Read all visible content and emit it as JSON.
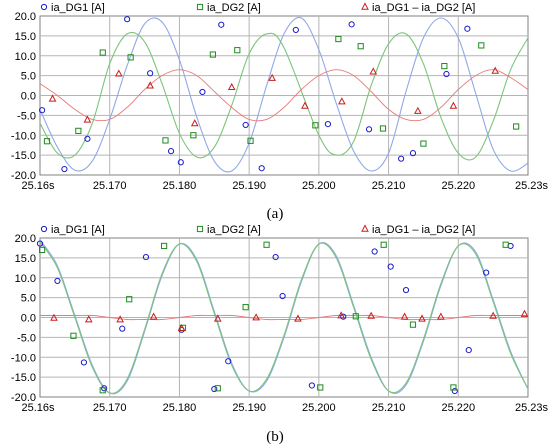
{
  "chart_data": [
    {
      "type": "line",
      "caption": "(a)",
      "xlim": [
        25.16,
        25.23
      ],
      "ylim": [
        -20,
        20
      ],
      "x_ticks": [
        "25.16s",
        "25.170",
        "25.180",
        "25.190",
        "25.200",
        "25.210",
        "25.220",
        "25.23s"
      ],
      "y_ticks": [
        "20.0",
        "15.0",
        "10.0",
        "5.0",
        "0.0",
        "-5.0",
        "-10.0",
        "-15.0",
        "-20.0"
      ],
      "grid": true,
      "legend_position": "top",
      "series": [
        {
          "name": "ia_DG1 [A]",
          "color": "#1a1acc",
          "line_color": "#8fa8e8",
          "marker": "circle",
          "x": [
            25.16,
            25.1625,
            25.165,
            25.1675,
            25.17,
            25.1725,
            25.175,
            25.1775,
            25.18,
            25.1825,
            25.185,
            25.1875,
            25.19,
            25.1925,
            25.195,
            25.1975,
            25.2,
            25.2025,
            25.205,
            25.2075,
            25.21,
            25.2125,
            25.215,
            25.2175,
            25.22,
            25.2225,
            25.225,
            25.2275,
            25.23
          ],
          "y": [
            -3.5,
            -13.0,
            -18.8,
            -16.5,
            -6.0,
            7.5,
            18.0,
            18.5,
            9.0,
            -5.5,
            -16.5,
            -19.0,
            -12.0,
            2.5,
            15.5,
            19.5,
            11.5,
            -2.0,
            -14.0,
            -19.0,
            -14.5,
            1.0,
            14.5,
            19.5,
            14.5,
            0.5,
            -13.5,
            -19.0,
            -17.0
          ],
          "marked_points": [
            [
              25.1603,
              -3.7
            ],
            [
              25.1635,
              -18.5
            ],
            [
              25.1668,
              -10.9
            ],
            [
              25.1725,
              19.2
            ],
            [
              25.1758,
              5.6
            ],
            [
              25.1788,
              -14.0
            ],
            [
              25.1802,
              -16.8
            ],
            [
              25.1833,
              0.9
            ],
            [
              25.186,
              17.8
            ],
            [
              25.1895,
              -7.4
            ],
            [
              25.1918,
              -18.3
            ],
            [
              25.1967,
              16.5
            ],
            [
              25.2013,
              -7.2
            ],
            [
              25.2047,
              17.9
            ],
            [
              25.2072,
              -8.5
            ],
            [
              25.2118,
              -15.9
            ],
            [
              25.2135,
              -14.5
            ],
            [
              25.2183,
              5.4
            ],
            [
              25.2213,
              16.8
            ]
          ]
        },
        {
          "name": "ia_DG2 [A]",
          "color": "#1e8c1e",
          "line_color": "#7cc47c",
          "marker": "square",
          "x": [
            25.16,
            25.1625,
            25.165,
            25.1675,
            25.17,
            25.1725,
            25.175,
            25.1775,
            25.18,
            25.1825,
            25.185,
            25.1875,
            25.19,
            25.1925,
            25.195,
            25.2,
            25.2025,
            25.205,
            25.2075,
            25.21,
            25.2125,
            25.215,
            25.2175,
            25.22,
            25.2225,
            25.225,
            25.2275,
            25.23
          ],
          "y": [
            -7.0,
            -14.5,
            -15.0,
            -7.0,
            8.0,
            15.5,
            13.5,
            3.0,
            -9.5,
            -15.5,
            -13.0,
            -2.5,
            10.5,
            15.5,
            12.0,
            -10.0,
            -15.0,
            -11.5,
            2.5,
            13.0,
            15.5,
            8.0,
            -5.5,
            -14.5,
            -15.5,
            -6.5,
            6.5,
            14.5
          ],
          "marked_points": [
            [
              25.161,
              -11.5
            ],
            [
              25.1655,
              -8.9
            ],
            [
              25.169,
              10.8
            ],
            [
              25.173,
              9.6
            ],
            [
              25.178,
              -11.3
            ],
            [
              25.182,
              -10.0
            ],
            [
              25.1848,
              10.3
            ],
            [
              25.1883,
              11.4
            ],
            [
              25.1902,
              -11.4
            ],
            [
              25.1995,
              -7.5
            ],
            [
              25.2028,
              14.2
            ],
            [
              25.206,
              12.4
            ],
            [
              25.2092,
              -8.3
            ],
            [
              25.215,
              -12.1
            ],
            [
              25.218,
              7.4
            ],
            [
              25.2233,
              12.6
            ],
            [
              25.2283,
              -7.8
            ]
          ]
        },
        {
          "name": "ia_DG1 – ia_DG2 [A]",
          "color": "#c81e1e",
          "line_color": "#e87a7a",
          "marker": "triangle",
          "x": [
            25.16,
            25.1625,
            25.165,
            25.1675,
            25.17,
            25.1725,
            25.175,
            25.1775,
            25.18,
            25.1825,
            25.185,
            25.1875,
            25.19,
            25.1925,
            25.195,
            25.1975,
            25.2,
            25.2025,
            25.205,
            25.2075,
            25.21,
            25.2125,
            25.215,
            25.2175,
            25.22,
            25.2225,
            25.225,
            25.2275,
            25.23
          ],
          "y": [
            3.0,
            0.0,
            -3.5,
            -6.0,
            -6.0,
            -3.0,
            1.5,
            5.0,
            6.5,
            5.0,
            1.0,
            -3.0,
            -6.0,
            -6.0,
            -3.0,
            1.5,
            5.0,
            6.5,
            5.0,
            1.0,
            -3.5,
            -6.0,
            -6.0,
            -3.0,
            1.5,
            5.0,
            6.5,
            4.5,
            1.5
          ],
          "marked_points": [
            [
              25.1618,
              -0.8
            ],
            [
              25.1668,
              -6.1
            ],
            [
              25.1713,
              5.5
            ],
            [
              25.1758,
              2.5
            ],
            [
              25.1822,
              -7.0
            ],
            [
              25.1875,
              2.1
            ],
            [
              25.1933,
              4.4
            ],
            [
              25.198,
              -2.6
            ],
            [
              25.2033,
              -1.5
            ],
            [
              25.2078,
              6.0
            ],
            [
              25.2142,
              -3.9
            ],
            [
              25.2193,
              -2.6
            ],
            [
              25.2253,
              6.2
            ]
          ]
        }
      ]
    },
    {
      "type": "line",
      "caption": "(b)",
      "xlim": [
        25.16,
        25.23
      ],
      "ylim": [
        -20,
        20
      ],
      "x_ticks": [
        "25.16s",
        "25.170",
        "25.180",
        "25.190",
        "25.200",
        "25.210",
        "25.220",
        "25.23s"
      ],
      "y_ticks": [
        "20.0",
        "15.0",
        "10.0",
        "5.0",
        "0.0",
        "-5.0",
        "-10.0",
        "-15.0",
        "-20.0"
      ],
      "grid": true,
      "legend_position": "top",
      "series": [
        {
          "name": "ia_DG1 [A]",
          "color": "#1a1acc",
          "line_color": "#8fa8e8",
          "marker": "circle",
          "x": [
            25.16,
            25.1625,
            25.165,
            25.1675,
            25.17,
            25.1725,
            25.175,
            25.1775,
            25.18,
            25.1825,
            25.185,
            25.1875,
            25.19,
            25.1925,
            25.195,
            25.1975,
            25.2,
            25.2025,
            25.205,
            25.2075,
            25.21,
            25.2125,
            25.215,
            25.2175,
            25.22,
            25.2225,
            25.225,
            25.2275,
            25.23
          ],
          "y": [
            19.5,
            13.0,
            0.5,
            -12.0,
            -19.0,
            -16.0,
            -3.5,
            10.5,
            18.5,
            14.5,
            1.5,
            -11.5,
            -18.5,
            -16.0,
            -5.0,
            9.0,
            18.5,
            15.5,
            3.0,
            -10.0,
            -18.5,
            -17.0,
            -6.0,
            8.0,
            18.0,
            16.5,
            4.5,
            -8.5,
            -18.0
          ],
          "marked_points": [
            [
              25.16,
              18.6
            ],
            [
              25.1625,
              9.2
            ],
            [
              25.1663,
              -11.3
            ],
            [
              25.1692,
              -17.8
            ],
            [
              25.1718,
              -2.8
            ],
            [
              25.1752,
              15.2
            ],
            [
              25.1803,
              -3.1
            ],
            [
              25.185,
              -18.0
            ],
            [
              25.187,
              -11.0
            ],
            [
              25.1938,
              15.2
            ],
            [
              25.1948,
              5.4
            ],
            [
              25.199,
              -17.1
            ],
            [
              25.2035,
              0.2
            ],
            [
              25.208,
              16.6
            ],
            [
              25.2103,
              12.8
            ],
            [
              25.2125,
              6.9
            ],
            [
              25.2195,
              -18.5
            ],
            [
              25.2215,
              -8.2
            ],
            [
              25.224,
              11.3
            ],
            [
              25.2275,
              18.0
            ]
          ]
        },
        {
          "name": "ia_DG2 [A]",
          "color": "#1e8c1e",
          "line_color": "#7cc47c",
          "marker": "square",
          "x": [
            25.16,
            25.1625,
            25.165,
            25.1675,
            25.17,
            25.1725,
            25.175,
            25.1775,
            25.18,
            25.1825,
            25.185,
            25.1875,
            25.19,
            25.1925,
            25.195,
            25.1975,
            25.2,
            25.2025,
            25.205,
            25.2075,
            25.21,
            25.2125,
            25.215,
            25.2175,
            25.22,
            25.2225,
            25.225,
            25.2275,
            25.23
          ],
          "y": [
            19.0,
            12.5,
            0.0,
            -12.5,
            -19.0,
            -15.5,
            -3.0,
            11.0,
            18.5,
            14.0,
            1.0,
            -12.0,
            -18.5,
            -15.5,
            -4.5,
            9.5,
            18.5,
            15.0,
            2.5,
            -10.5,
            -18.5,
            -16.5,
            -5.5,
            8.5,
            18.0,
            16.0,
            4.0,
            -9.0,
            -18.0
          ],
          "marked_points": [
            [
              25.1603,
              17.0
            ],
            [
              25.1648,
              -4.6
            ],
            [
              25.169,
              -18.3
            ],
            [
              25.1728,
              4.6
            ],
            [
              25.1778,
              18.0
            ],
            [
              25.1805,
              -2.6
            ],
            [
              25.1855,
              -17.8
            ],
            [
              25.1895,
              2.6
            ],
            [
              25.1925,
              18.3
            ],
            [
              25.2002,
              -17.6
            ],
            [
              25.2053,
              0.3
            ],
            [
              25.2093,
              18.3
            ],
            [
              25.2135,
              -1.8
            ],
            [
              25.2193,
              -17.6
            ],
            [
              25.2268,
              18.3
            ]
          ]
        },
        {
          "name": "ia_DG1 – ia_DG2 [A]",
          "color": "#c81e1e",
          "line_color": "#e87a7a",
          "marker": "triangle",
          "x": [
            25.16,
            25.1625,
            25.165,
            25.1675,
            25.17,
            25.1725,
            25.175,
            25.1775,
            25.18,
            25.1825,
            25.185,
            25.1875,
            25.19,
            25.1925,
            25.195,
            25.1975,
            25.2,
            25.2025,
            25.205,
            25.2075,
            25.21,
            25.2125,
            25.215,
            25.2175,
            25.22,
            25.2225,
            25.225,
            25.2275,
            25.23
          ],
          "y": [
            0.5,
            0.5,
            0.5,
            0.5,
            0.0,
            -0.5,
            -0.5,
            -0.5,
            0.0,
            0.5,
            0.5,
            0.5,
            0.0,
            -0.5,
            -0.5,
            -0.5,
            0.0,
            0.5,
            0.5,
            0.5,
            0.0,
            -0.5,
            -0.5,
            -0.5,
            0.0,
            0.5,
            0.5,
            0.5,
            0.5
          ],
          "marked_points": [
            [
              25.162,
              -0.1
            ],
            [
              25.167,
              -0.5
            ],
            [
              25.1715,
              -0.5
            ],
            [
              25.1763,
              0.2
            ],
            [
              25.1803,
              -2.7
            ],
            [
              25.1855,
              -0.3
            ],
            [
              25.191,
              0.0
            ],
            [
              25.197,
              -0.3
            ],
            [
              25.2032,
              0.5
            ],
            [
              25.2075,
              0.4
            ],
            [
              25.2123,
              0.2
            ],
            [
              25.2148,
              -0.3
            ],
            [
              25.2175,
              0.2
            ],
            [
              25.225,
              0.4
            ],
            [
              25.2295,
              0.9
            ]
          ]
        }
      ]
    }
  ]
}
